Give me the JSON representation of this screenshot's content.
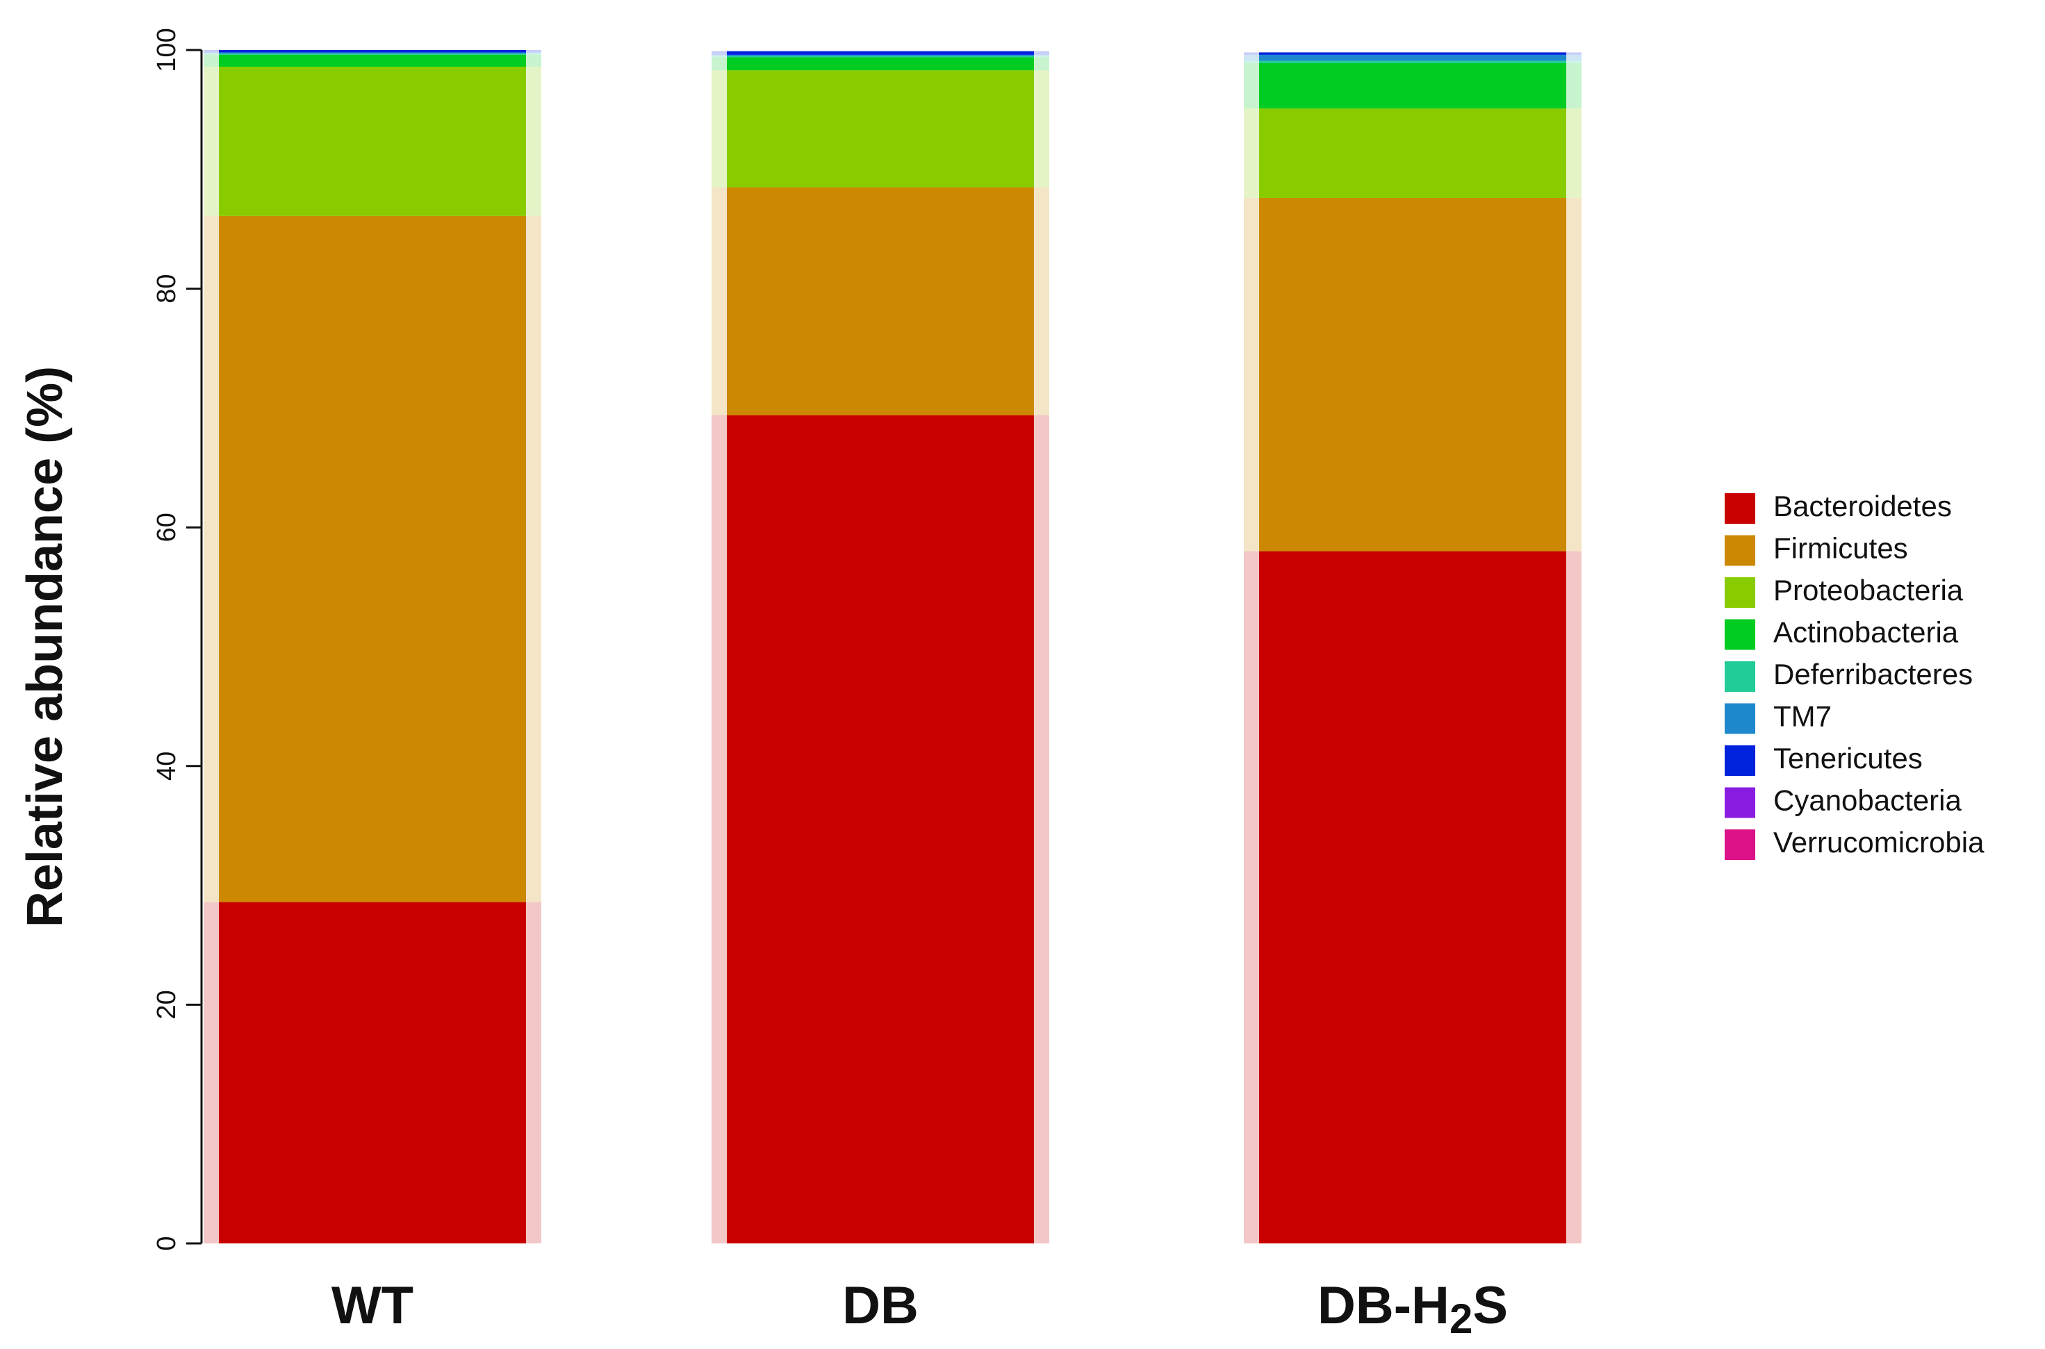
{
  "chart_data": {
    "type": "bar",
    "stacked": true,
    "ylabel": "Relative abundance (%)",
    "ylim": [
      0,
      100
    ],
    "yticks": [
      0,
      20,
      40,
      60,
      80,
      100
    ],
    "categories": [
      "WT",
      "DB",
      "DB-H2S"
    ],
    "category_display": [
      {
        "main": "WT",
        "sub": "",
        "tail": ""
      },
      {
        "main": "DB",
        "sub": "",
        "tail": ""
      },
      {
        "main": "DB-H",
        "sub": "2",
        "tail": "S"
      }
    ],
    "series": [
      {
        "name": "Bacteroidetes",
        "color": "#c80000",
        "values": [
          28.6,
          69.4,
          58.0
        ]
      },
      {
        "name": "Firmicutes",
        "color": "#cc8800",
        "values": [
          57.5,
          19.1,
          29.6
        ]
      },
      {
        "name": "Proteobacteria",
        "color": "#88cc00",
        "values": [
          12.5,
          9.8,
          7.5
        ]
      },
      {
        "name": "Actinobacteria",
        "color": "#00cc22",
        "values": [
          1.0,
          1.1,
          3.8
        ]
      },
      {
        "name": "Deferribacteres",
        "color": "#22cc99",
        "values": [
          0.1,
          0.1,
          0.2
        ]
      },
      {
        "name": "TM7",
        "color": "#1e88cc",
        "values": [
          0.1,
          0.1,
          0.5
        ]
      },
      {
        "name": "Tenericutes",
        "color": "#0022dd",
        "values": [
          0.2,
          0.3,
          0.2
        ]
      },
      {
        "name": "Cyanobacteria",
        "color": "#8a1be0",
        "values": [
          0.0,
          0.0,
          0.0
        ]
      },
      {
        "name": "Verrucomicrobia",
        "color": "#dd1188",
        "values": [
          0.0,
          0.0,
          0.0
        ]
      }
    ],
    "legend_position": "right",
    "grid": false
  }
}
